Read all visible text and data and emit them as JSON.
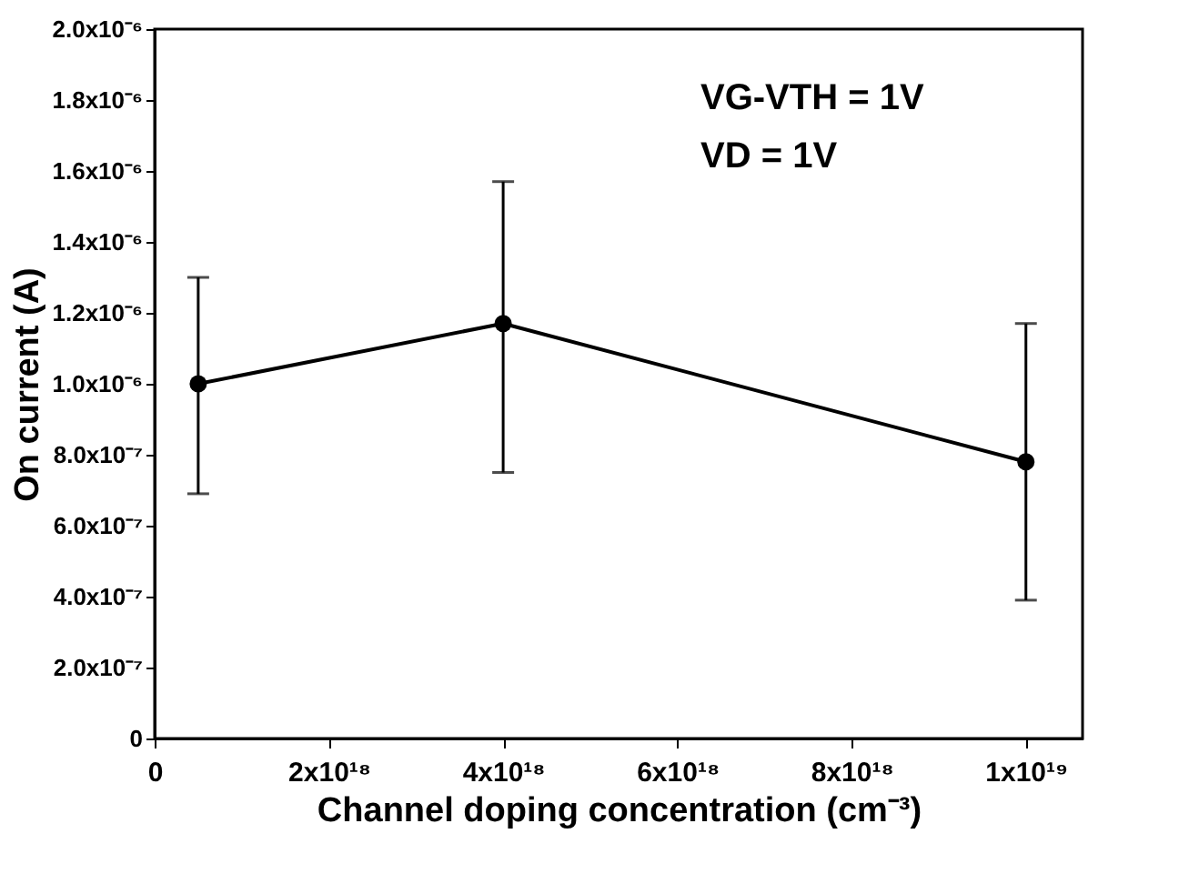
{
  "chart_data": {
    "type": "line",
    "xlabel": "Channel doping concentration (cm⁻³)",
    "ylabel": "On current (A)",
    "x": [
      5e+17,
      4e+18,
      1e+19
    ],
    "series": [
      {
        "color": "#000000",
        "values": [
          1e-06,
          1.17e-06,
          7.8e-07
        ],
        "errors": [
          [
            6.9e-07,
            1.3e-06
          ],
          [
            7.5e-07,
            1.57e-06
          ],
          [
            3.9e-07,
            1.17e-06
          ]
        ]
      }
    ],
    "xlim": [
      0,
      1.065e+19
    ],
    "xticks": [
      0,
      {
        "value": 2e+18,
        "label": "2x10¹⁸"
      },
      {
        "value": 4e+18,
        "label": "4x10¹⁸"
      },
      {
        "value": 6e+18,
        "label": "6x10¹⁸"
      },
      {
        "value": 8e+18,
        "label": "8x10¹⁸"
      },
      {
        "value": 1e+19,
        "label": "1x10¹⁹"
      }
    ],
    "ylim": [
      0,
      2e-06
    ],
    "yticks": [
      0,
      {
        "value": 2e-07,
        "label": "2.0x10⁻⁷"
      },
      {
        "value": 4e-07,
        "label": "4.0x10⁻⁷"
      },
      {
        "value": 6e-07,
        "label": "6.0x10⁻⁷"
      },
      {
        "value": 8e-07,
        "label": "8.0x10⁻⁷"
      },
      {
        "value": 1e-06,
        "label": "1.0x10⁻⁶"
      },
      {
        "value": 1.2e-06,
        "label": "1.2x10⁻⁶"
      },
      {
        "value": 1.4e-06,
        "label": "1.4x10⁻⁶"
      },
      {
        "value": 1.6e-06,
        "label": "1.6x10⁻⁶"
      },
      {
        "value": 1.8e-06,
        "label": "1.8x10⁻⁶"
      },
      {
        "value": 2e-06,
        "label": "2.0x10⁻⁶"
      }
    ],
    "annotations": [
      "VG-VTH = 1V",
      "VD = 1V"
    ],
    "marker": "circle",
    "line_style": "solid",
    "grid": false
  }
}
